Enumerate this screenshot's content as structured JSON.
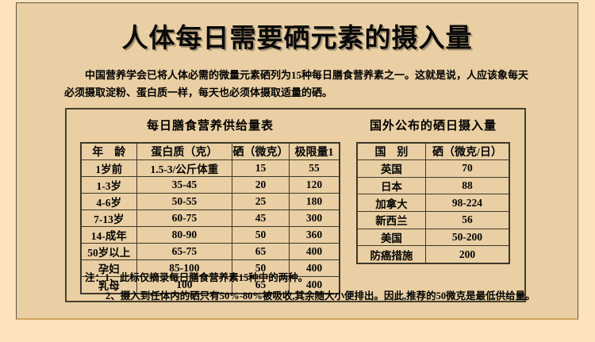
{
  "page": {
    "title": "人体每日需要硒元素的摄入量",
    "intro": "中国营养学会已将人体必需的微量元素硒列为15种每日膳食营养素之一。这就是说，人应该象每天必须摄取淀粉、蛋白质一样，每天也必须体摄取适量的硒。",
    "notes": {
      "line1": "注：1、此标仅摘录每日膳食营养素15种中的两种。",
      "line2": "2、摄入到任体内的硒只有50%-80%被吸收,其余随大小便排出。因此,推荐的50微克是最低供给量。"
    }
  },
  "domestic_table": {
    "title": "每日膳食营养供给量表",
    "headers": [
      "年　龄",
      "蛋白质（克）",
      "硒（微克）",
      "极限量1"
    ],
    "rows": [
      [
        "1岁前",
        "1.5-3/公斤体重",
        "15",
        "55"
      ],
      [
        "1-3岁",
        "35-45",
        "20",
        "120"
      ],
      [
        "4-6岁",
        "50-55",
        "25",
        "180"
      ],
      [
        "7-13岁",
        "60-75",
        "45",
        "300"
      ],
      [
        "14-成年",
        "80-90",
        "50",
        "360"
      ],
      [
        "50岁以上",
        "65-75",
        "65",
        "400"
      ],
      [
        "孕妇",
        "85-100",
        "50",
        "400"
      ],
      [
        "乳母",
        "100",
        "65",
        "400"
      ]
    ]
  },
  "foreign_table": {
    "title": "国外公布的硒日摄入量",
    "headers": [
      "国　别",
      "硒（微克/日）"
    ],
    "rows": [
      [
        "英国",
        "70"
      ],
      [
        "日本",
        "88"
      ],
      [
        "加拿大",
        "98-224"
      ],
      [
        "新西兰",
        "56"
      ],
      [
        "美国",
        "50-200"
      ],
      [
        "防癌措施",
        "200"
      ]
    ]
  },
  "colors": {
    "outer_background": "#fde3bd",
    "panel_background": "#e9cfa3",
    "border_dark": "#3d382a",
    "panel_bottom_border": "#d2a263",
    "text": "#000000"
  }
}
